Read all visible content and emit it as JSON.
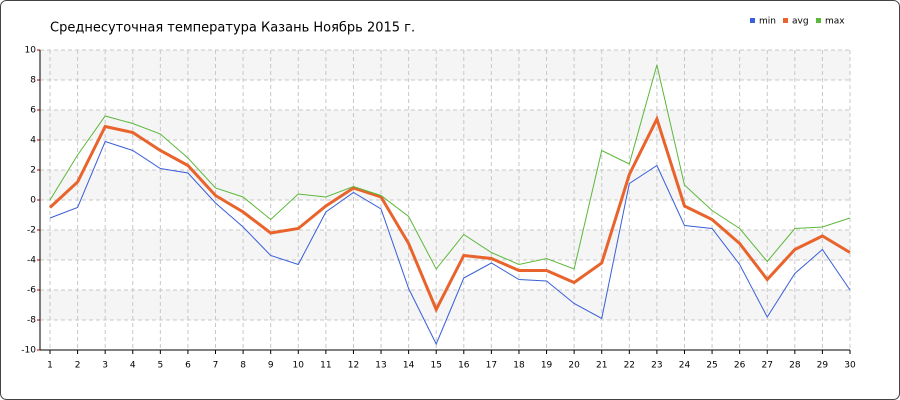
{
  "chart_data": {
    "type": "line",
    "title": "Среднесуточная температура Казань  Ноябрь 2015 г.",
    "categories": [
      "1",
      "2",
      "3",
      "4",
      "5",
      "6",
      "7",
      "8",
      "9",
      "10",
      "11",
      "12",
      "13",
      "14",
      "15",
      "16",
      "17",
      "18",
      "19",
      "20",
      "21",
      "22",
      "23",
      "24",
      "25",
      "26",
      "27",
      "28",
      "29",
      "30"
    ],
    "series": [
      {
        "name": "min",
        "color": "#3a5fd8",
        "values": [
          -1.2,
          -0.5,
          3.9,
          3.3,
          2.1,
          1.8,
          -0.2,
          -1.8,
          -3.7,
          -4.3,
          -0.8,
          0.5,
          -0.6,
          -5.9,
          -9.6,
          -5.2,
          -4.2,
          -5.3,
          -5.4,
          -6.9,
          -7.9,
          1.1,
          2.3,
          -1.7,
          -1.9,
          -4.3,
          -7.8,
          -4.9,
          -3.3,
          -6.0
        ]
      },
      {
        "name": "avg",
        "color": "#e8642c",
        "values": [
          -0.5,
          1.2,
          4.9,
          4.5,
          3.3,
          2.3,
          0.3,
          -0.8,
          -2.2,
          -1.9,
          -0.4,
          0.8,
          0.2,
          -2.9,
          -7.3,
          -3.7,
          -3.9,
          -4.7,
          -4.7,
          -5.5,
          -4.2,
          1.7,
          5.4,
          -0.4,
          -1.3,
          -2.9,
          -5.3,
          -3.3,
          -2.4,
          -3.5
        ]
      },
      {
        "name": "max",
        "color": "#5cb83a",
        "values": [
          0,
          3.0,
          5.6,
          5.1,
          4.4,
          2.8,
          0.8,
          0.2,
          -1.3,
          0.4,
          0.2,
          0.9,
          0.3,
          -1.1,
          -4.6,
          -2.3,
          -3.5,
          -4.3,
          -3.9,
          -4.6,
          3.3,
          2.4,
          9.0,
          1.0,
          -0.7,
          -1.9,
          -4.1,
          -1.9,
          -1.8,
          -1.2
        ]
      }
    ],
    "ylim": [
      -10,
      10
    ],
    "yticks": [
      -10,
      -8,
      -6,
      -4,
      -2,
      0,
      2,
      4,
      6,
      8,
      10
    ],
    "grid": true,
    "legend": "top-right"
  }
}
